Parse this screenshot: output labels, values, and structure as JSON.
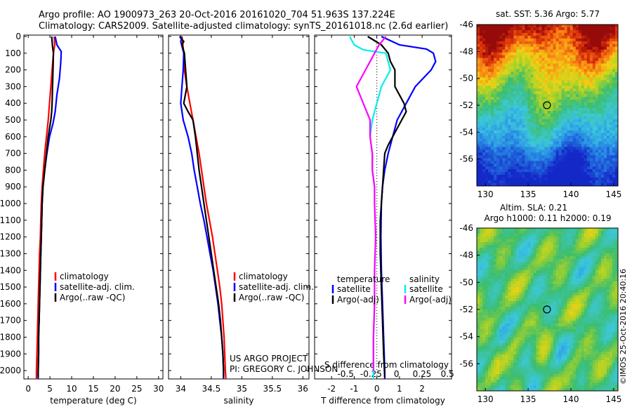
{
  "header": {
    "line1": "Argo profile: AO 1900973_263 20-Oct-2016 20161020_704 51.963S 137.224E",
    "line2": "Climatology: CARS2009. Satellite-adjusted climatology: synTS_20161018.nc (2.6d earlier)"
  },
  "colors": {
    "climatology": "#ff0000",
    "satellite": "#0000ff",
    "argo": "#000000",
    "argo_salinity_diff": "#ff00ff",
    "satellite_salinity_diff": "#00eeee"
  },
  "y_ticks": [
    0,
    100,
    200,
    300,
    400,
    500,
    600,
    700,
    800,
    900,
    1000,
    1100,
    1200,
    1300,
    1400,
    1500,
    1600,
    1700,
    1800,
    1900,
    2000
  ],
  "chart_data": [
    {
      "type": "line",
      "xlabel": "temperature (deg C)",
      "xlim": [
        -1,
        31
      ],
      "ylim": [
        2050,
        0
      ],
      "x_ticks": [
        0,
        5,
        10,
        15,
        20,
        25,
        30
      ],
      "legend": [
        "climatology",
        "satellite-adj. clim.",
        "Argo(..raw -QC)"
      ],
      "series": [
        {
          "name": "climatology",
          "points": [
            [
              6.0,
              0
            ],
            [
              6.1,
              50
            ],
            [
              5.8,
              100
            ],
            [
              5.5,
              200
            ],
            [
              5.2,
              300
            ],
            [
              4.9,
              400
            ],
            [
              4.6,
              500
            ],
            [
              4.2,
              600
            ],
            [
              3.8,
              700
            ],
            [
              3.5,
              800
            ],
            [
              3.2,
              900
            ],
            [
              3.0,
              1000
            ],
            [
              2.9,
              1100
            ],
            [
              2.8,
              1200
            ],
            [
              2.6,
              1300
            ],
            [
              2.5,
              1400
            ],
            [
              2.4,
              1500
            ],
            [
              2.3,
              1600
            ],
            [
              2.2,
              1700
            ],
            [
              2.1,
              1800
            ],
            [
              2.0,
              1900
            ],
            [
              1.9,
              2000
            ],
            [
              1.9,
              2050
            ]
          ]
        },
        {
          "name": "satellite-adj. clim.",
          "points": [
            [
              6.2,
              0
            ],
            [
              6.6,
              50
            ],
            [
              7.6,
              90
            ],
            [
              7.5,
              150
            ],
            [
              7.2,
              250
            ],
            [
              6.6,
              350
            ],
            [
              6.2,
              450
            ],
            [
              5.7,
              520
            ],
            [
              4.9,
              600
            ],
            [
              4.3,
              700
            ],
            [
              3.8,
              800
            ],
            [
              3.4,
              900
            ],
            [
              3.2,
              1000
            ],
            [
              3.1,
              1100
            ],
            [
              3.0,
              1200
            ],
            [
              2.9,
              1300
            ],
            [
              2.8,
              1400
            ],
            [
              2.7,
              1500
            ],
            [
              2.6,
              1600
            ],
            [
              2.5,
              1700
            ],
            [
              2.4,
              1800
            ],
            [
              2.4,
              1900
            ],
            [
              2.3,
              2000
            ],
            [
              2.3,
              2050
            ]
          ]
        },
        {
          "name": "Argo(..raw -QC)",
          "points": [
            [
              5.4,
              0
            ],
            [
              5.5,
              30
            ],
            [
              5.6,
              60
            ],
            [
              5.8,
              100
            ],
            [
              5.7,
              200
            ],
            [
              5.6,
              300
            ],
            [
              5.5,
              400
            ],
            [
              5.4,
              450
            ],
            [
              5.2,
              500
            ],
            [
              4.6,
              600
            ],
            [
              4.2,
              700
            ],
            [
              3.8,
              800
            ],
            [
              3.4,
              900
            ],
            [
              3.2,
              1000
            ],
            [
              3.1,
              1100
            ],
            [
              3.0,
              1200
            ],
            [
              2.9,
              1300
            ],
            [
              2.8,
              1400
            ],
            [
              2.7,
              1500
            ],
            [
              2.6,
              1600
            ],
            [
              2.5,
              1700
            ],
            [
              2.4,
              1800
            ],
            [
              2.4,
              1900
            ],
            [
              2.3,
              2000
            ],
            [
              2.3,
              2040
            ]
          ]
        }
      ]
    },
    {
      "type": "line",
      "xlabel": "salinity",
      "xlim": [
        33.8,
        36.1
      ],
      "ylim": [
        2050,
        0
      ],
      "x_ticks": [
        34,
        34.5,
        35,
        35.5,
        36
      ],
      "legend": [
        "climatology",
        "satellite-adj. clim.",
        "Argo(..raw -QC)"
      ],
      "series": [
        {
          "name": "climatology",
          "points": [
            [
              34.02,
              0
            ],
            [
              34.05,
              100
            ],
            [
              34.06,
              200
            ],
            [
              34.1,
              300
            ],
            [
              34.15,
              400
            ],
            [
              34.2,
              500
            ],
            [
              34.25,
              600
            ],
            [
              34.3,
              700
            ],
            [
              34.34,
              800
            ],
            [
              34.38,
              900
            ],
            [
              34.42,
              1000
            ],
            [
              34.47,
              1100
            ],
            [
              34.52,
              1200
            ],
            [
              34.56,
              1300
            ],
            [
              34.6,
              1400
            ],
            [
              34.64,
              1500
            ],
            [
              34.67,
              1600
            ],
            [
              34.69,
              1700
            ],
            [
              34.71,
              1800
            ],
            [
              34.72,
              1900
            ],
            [
              34.73,
              2000
            ],
            [
              34.74,
              2050
            ]
          ]
        },
        {
          "name": "satellite-adj. clim.",
          "points": [
            [
              34.02,
              0
            ],
            [
              34.0,
              30
            ],
            [
              34.05,
              100
            ],
            [
              34.04,
              200
            ],
            [
              34.02,
              300
            ],
            [
              34.0,
              400
            ],
            [
              34.04,
              500
            ],
            [
              34.12,
              600
            ],
            [
              34.18,
              700
            ],
            [
              34.22,
              800
            ],
            [
              34.27,
              900
            ],
            [
              34.32,
              1000
            ],
            [
              34.38,
              1100
            ],
            [
              34.43,
              1200
            ],
            [
              34.48,
              1300
            ],
            [
              34.53,
              1400
            ],
            [
              34.57,
              1500
            ],
            [
              34.61,
              1600
            ],
            [
              34.64,
              1700
            ],
            [
              34.67,
              1800
            ],
            [
              34.69,
              1900
            ],
            [
              34.7,
              2000
            ],
            [
              34.7,
              2050
            ]
          ]
        },
        {
          "name": "Argo(..raw -QC)",
          "points": [
            [
              33.98,
              0
            ],
            [
              34.05,
              30
            ],
            [
              34.02,
              50
            ],
            [
              34.06,
              100
            ],
            [
              34.08,
              200
            ],
            [
              34.1,
              300
            ],
            [
              34.05,
              400
            ],
            [
              34.12,
              450
            ],
            [
              34.2,
              500
            ],
            [
              34.24,
              600
            ],
            [
              34.27,
              700
            ],
            [
              34.3,
              800
            ],
            [
              34.34,
              900
            ],
            [
              34.38,
              1000
            ],
            [
              34.42,
              1100
            ],
            [
              34.46,
              1200
            ],
            [
              34.5,
              1300
            ],
            [
              34.54,
              1400
            ],
            [
              34.58,
              1500
            ],
            [
              34.62,
              1600
            ],
            [
              34.65,
              1700
            ],
            [
              34.67,
              1800
            ],
            [
              34.69,
              1900
            ],
            [
              34.7,
              2000
            ],
            [
              34.7,
              2040
            ]
          ]
        }
      ]
    },
    {
      "type": "line",
      "xlabel": "T difference from climatology",
      "xlabel_top": "S difference from climatology",
      "xlim": [
        -2.75,
        3.3
      ],
      "ylim": [
        2050,
        0
      ],
      "x_ticks": [
        -2,
        -1,
        0,
        1,
        2
      ],
      "x_ticks_top": [
        "-0.5",
        "-0.25",
        "0",
        "0.25",
        "0.5"
      ],
      "legend_headers": [
        "temperature",
        "salinity"
      ],
      "legend": [
        "satellite",
        "Argo(-adj)",
        "satellite",
        "Argo(-adj)"
      ],
      "series": [
        {
          "name": "temperature satellite",
          "points": [
            [
              0.2,
              0
            ],
            [
              1.0,
              50
            ],
            [
              2.2,
              75
            ],
            [
              2.5,
              100
            ],
            [
              2.6,
              150
            ],
            [
              2.4,
              200
            ],
            [
              1.7,
              300
            ],
            [
              1.3,
              400
            ],
            [
              0.9,
              500
            ],
            [
              0.7,
              600
            ],
            [
              0.5,
              700
            ],
            [
              0.35,
              800
            ],
            [
              0.25,
              900
            ],
            [
              0.2,
              1000
            ],
            [
              0.18,
              1200
            ],
            [
              0.2,
              1400
            ],
            [
              0.25,
              1600
            ],
            [
              0.3,
              1800
            ],
            [
              0.35,
              2000
            ],
            [
              0.35,
              2050
            ]
          ]
        },
        {
          "name": "temperature Argo(-adj)",
          "points": [
            [
              -0.4,
              0
            ],
            [
              0.2,
              50
            ],
            [
              0.5,
              100
            ],
            [
              0.6,
              150
            ],
            [
              0.8,
              200
            ],
            [
              0.8,
              300
            ],
            [
              1.2,
              400
            ],
            [
              1.3,
              450
            ],
            [
              0.9,
              550
            ],
            [
              0.5,
              650
            ],
            [
              0.35,
              700
            ],
            [
              0.3,
              800
            ],
            [
              0.25,
              900
            ],
            [
              0.2,
              1000
            ],
            [
              0.15,
              1100
            ],
            [
              0.15,
              1300
            ],
            [
              0.2,
              1500
            ],
            [
              0.25,
              1700
            ],
            [
              0.3,
              1900
            ],
            [
              0.35,
              2040
            ]
          ]
        },
        {
          "name": "salinity satellite",
          "points": [
            [
              -1.2,
              0
            ],
            [
              -1.0,
              50
            ],
            [
              -0.6,
              80
            ],
            [
              0.4,
              100
            ],
            [
              0.6,
              200
            ],
            [
              0.2,
              300
            ],
            [
              0.0,
              400
            ],
            [
              -0.2,
              500
            ],
            [
              -0.3,
              600
            ],
            [
              -0.2,
              700
            ],
            [
              -0.2,
              800
            ],
            [
              -0.1,
              900
            ],
            [
              -0.1,
              1000
            ],
            [
              -0.05,
              1200
            ],
            [
              -0.1,
              1400
            ],
            [
              -0.1,
              1600
            ],
            [
              -0.15,
              1800
            ],
            [
              -0.15,
              2000
            ],
            [
              -0.15,
              2050
            ]
          ]
        },
        {
          "name": "salinity Argo(-adj)",
          "points": [
            [
              0.4,
              0
            ],
            [
              0.1,
              50
            ],
            [
              -0.1,
              100
            ],
            [
              -0.3,
              150
            ],
            [
              -0.5,
              200
            ],
            [
              -0.9,
              300
            ],
            [
              -0.6,
              400
            ],
            [
              -0.3,
              500
            ],
            [
              -0.3,
              600
            ],
            [
              -0.2,
              700
            ],
            [
              -0.2,
              800
            ],
            [
              -0.1,
              900
            ],
            [
              -0.1,
              1000
            ],
            [
              -0.05,
              1200
            ],
            [
              -0.1,
              1400
            ],
            [
              -0.1,
              1600
            ],
            [
              -0.15,
              1800
            ],
            [
              -0.15,
              2000
            ]
          ]
        }
      ]
    },
    {
      "type": "heatmap",
      "title": "sat. SST: 5.36 Argo: 5.77",
      "xlim": [
        129,
        145.5
      ],
      "ylim": [
        -58,
        -46
      ],
      "x_ticks": [
        130,
        135,
        140,
        145
      ],
      "y_ticks": [
        -56,
        -54,
        -52,
        -50,
        -48,
        -46
      ],
      "marker": [
        137.2,
        -52.0
      ]
    },
    {
      "type": "heatmap",
      "title": "Altim. SLA: 0.21",
      "subtitle": "Argo h1000: 0.11 h2000: 0.19",
      "xlim": [
        129,
        145.5
      ],
      "ylim": [
        -58,
        -46
      ],
      "x_ticks": [
        130,
        135,
        140,
        145
      ],
      "y_ticks": [
        -56,
        -54,
        -52,
        -50,
        -48,
        -46
      ],
      "marker": [
        137.2,
        -52.0
      ]
    }
  ],
  "footer": {
    "project_line": "US ARGO PROJECT",
    "pi_line": "PI: GREGORY C. JOHNSON",
    "credit": "©IMOS 25-Oct-2016 20:40:16"
  }
}
